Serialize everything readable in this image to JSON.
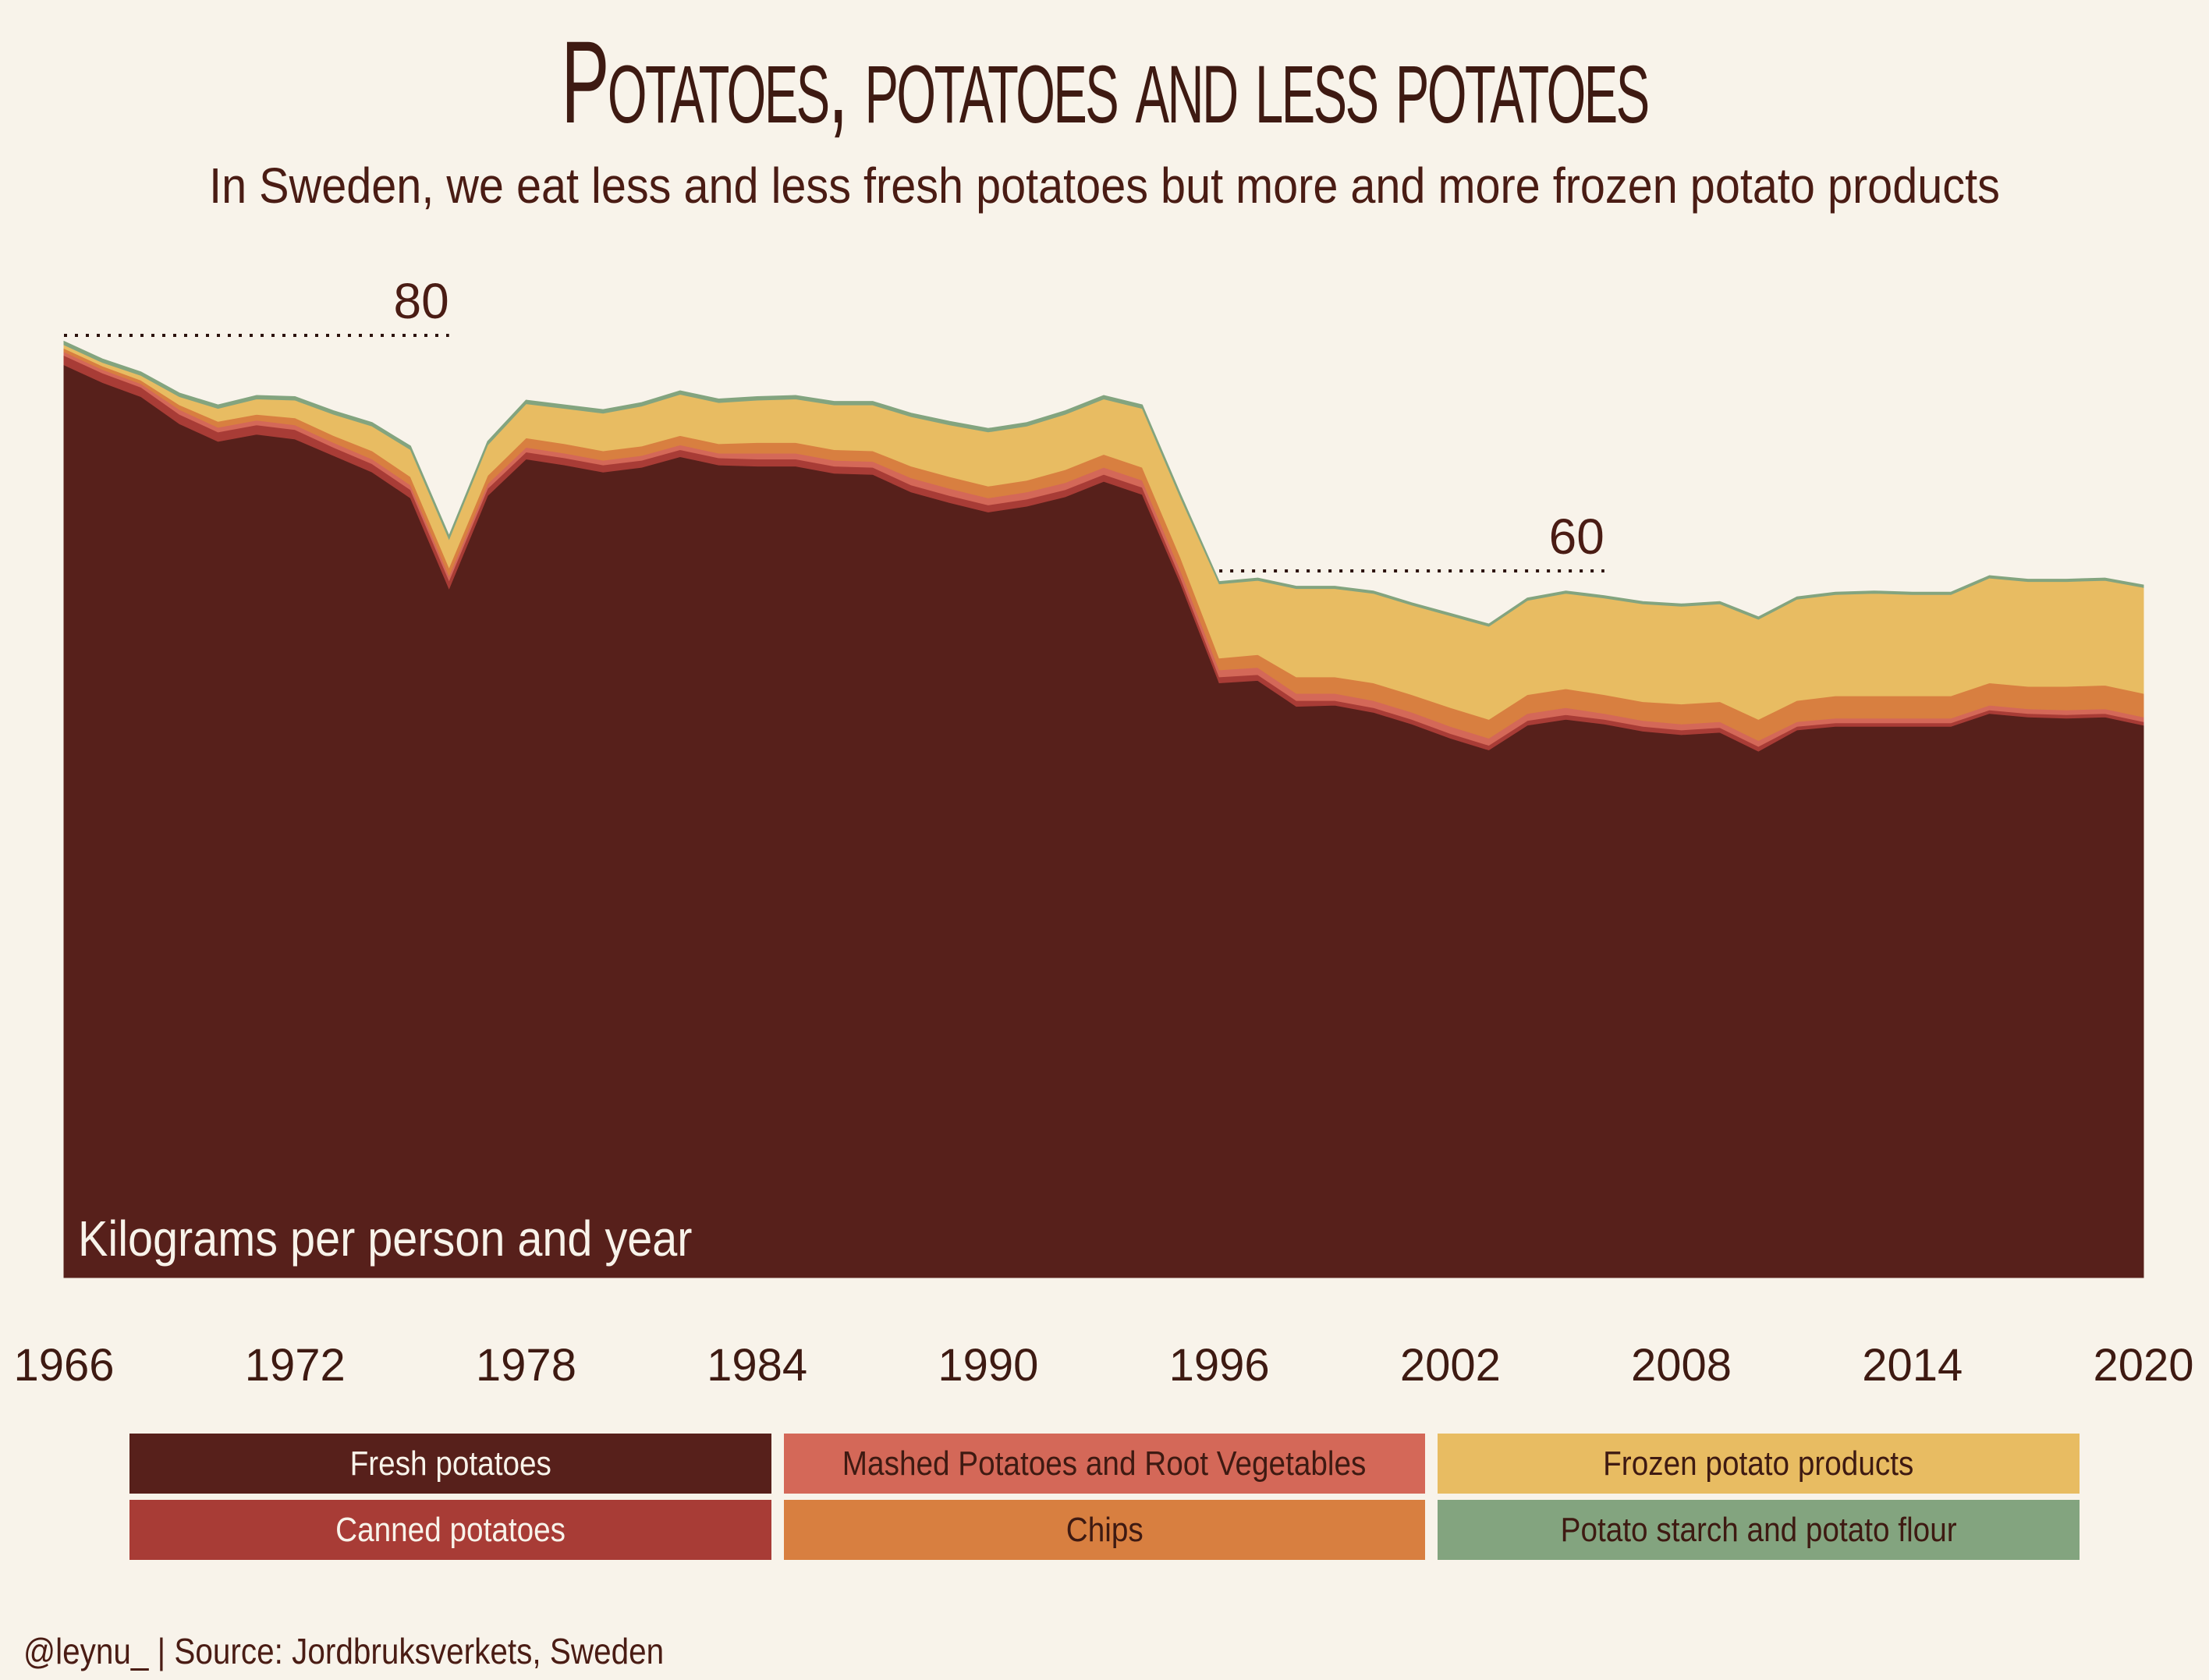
{
  "title": "Potatoes, potatoes and less potatoes",
  "subtitle": "In Sweden, we eat less and less fresh potatoes but more and more frozen potato products",
  "credit": "@leynu_ | Source: Jordbruksverkets, Sweden",
  "colors": {
    "background": "#f8f3ea",
    "text": "#4a1c14"
  },
  "chart_data": {
    "type": "area",
    "stacked": true,
    "ylabel": "Kilograms per person and year",
    "xlim": [
      1966,
      2020
    ],
    "ylim": [
      0,
      100
    ],
    "x_ticks": [
      1966,
      1972,
      1978,
      1984,
      1990,
      1996,
      2002,
      2008,
      2014,
      2020
    ],
    "annotations": [
      {
        "label": "80",
        "value": 80,
        "x_start": 1966,
        "x_end": 1976
      },
      {
        "label": "60",
        "value": 60,
        "x_start": 1996,
        "x_end": 2006
      }
    ],
    "x": [
      1966,
      1967,
      1968,
      1969,
      1970,
      1971,
      1972,
      1973,
      1974,
      1975,
      1976,
      1977,
      1978,
      1979,
      1980,
      1981,
      1982,
      1983,
      1984,
      1985,
      1986,
      1987,
      1988,
      1989,
      1990,
      1991,
      1992,
      1993,
      1994,
      1995,
      1996,
      1997,
      1998,
      1999,
      2000,
      2001,
      2002,
      2003,
      2004,
      2005,
      2006,
      2007,
      2008,
      2009,
      2010,
      2011,
      2012,
      2013,
      2014,
      2015,
      2016,
      2017,
      2018,
      2019,
      2020
    ],
    "series": [
      {
        "name": "Fresh potatoes",
        "color": "#57201b",
        "values": [
          77.5,
          76.0,
          74.8,
          72.5,
          71.0,
          71.6,
          71.2,
          69.8,
          68.4,
          66.2,
          58.5,
          66.4,
          69.5,
          69.0,
          68.4,
          68.8,
          69.7,
          69.0,
          68.9,
          68.9,
          68.3,
          68.2,
          66.7,
          65.8,
          65.0,
          65.5,
          66.3,
          67.6,
          66.5,
          58.9,
          50.5,
          50.7,
          48.5,
          48.6,
          48.0,
          47.0,
          45.8,
          44.8,
          46.9,
          47.4,
          47.0,
          46.4,
          46.1,
          46.3,
          44.7,
          46.5,
          46.8,
          46.8,
          46.8,
          46.8,
          47.9,
          47.6,
          47.5,
          47.6,
          46.9
        ]
      },
      {
        "name": "Canned potatoes",
        "color": "#a83c36",
        "values": [
          0.8,
          0.8,
          0.8,
          0.8,
          0.8,
          0.8,
          0.8,
          0.7,
          0.7,
          0.7,
          0.7,
          0.6,
          0.6,
          0.6,
          0.6,
          0.6,
          0.6,
          0.6,
          0.6,
          0.6,
          0.6,
          0.6,
          0.6,
          0.6,
          0.6,
          0.6,
          0.6,
          0.6,
          0.6,
          0.5,
          0.5,
          0.5,
          0.5,
          0.4,
          0.4,
          0.4,
          0.4,
          0.4,
          0.4,
          0.4,
          0.4,
          0.4,
          0.4,
          0.4,
          0.4,
          0.3,
          0.3,
          0.3,
          0.3,
          0.3,
          0.3,
          0.3,
          0.3,
          0.3,
          0.3
        ]
      },
      {
        "name": "Mashed Potatoes and Root Vegetables",
        "color": "#d46858",
        "values": [
          0.3,
          0.3,
          0.3,
          0.4,
          0.4,
          0.4,
          0.4,
          0.4,
          0.4,
          0.4,
          0.4,
          0.4,
          0.4,
          0.4,
          0.4,
          0.4,
          0.4,
          0.4,
          0.5,
          0.5,
          0.5,
          0.5,
          0.6,
          0.6,
          0.6,
          0.6,
          0.6,
          0.6,
          0.6,
          0.6,
          0.6,
          0.6,
          0.6,
          0.6,
          0.6,
          0.6,
          0.6,
          0.6,
          0.6,
          0.6,
          0.5,
          0.5,
          0.5,
          0.5,
          0.5,
          0.4,
          0.4,
          0.4,
          0.4,
          0.4,
          0.4,
          0.4,
          0.4,
          0.4,
          0.4
        ]
      },
      {
        "name": "Chips",
        "color": "#d87f40",
        "values": [
          0.3,
          0.3,
          0.3,
          0.4,
          0.5,
          0.5,
          0.6,
          0.6,
          0.7,
          0.7,
          0.7,
          0.7,
          0.8,
          0.8,
          0.8,
          0.8,
          0.8,
          0.8,
          0.9,
          0.9,
          0.9,
          0.9,
          1.0,
          1.0,
          1.0,
          1.0,
          1.1,
          1.1,
          1.1,
          1.1,
          1.0,
          1.1,
          1.4,
          1.4,
          1.5,
          1.5,
          1.6,
          1.6,
          1.6,
          1.6,
          1.6,
          1.6,
          1.7,
          1.7,
          1.8,
          1.8,
          1.9,
          1.9,
          1.9,
          1.9,
          1.9,
          1.9,
          2.0,
          2.0,
          2.0
        ]
      },
      {
        "name": "Frozen potato products",
        "color": "#e8bc62",
        "values": [
          0.3,
          0.3,
          0.4,
          0.7,
          1.1,
          1.3,
          1.5,
          1.8,
          2.1,
          2.3,
          2.4,
          2.6,
          2.9,
          3.0,
          3.2,
          3.4,
          3.5,
          3.5,
          3.6,
          3.7,
          3.8,
          3.9,
          4.2,
          4.4,
          4.6,
          4.6,
          4.7,
          4.7,
          5.0,
          5.1,
          6.3,
          6.3,
          7.5,
          7.5,
          7.6,
          7.6,
          7.8,
          7.9,
          8.0,
          8.1,
          8.2,
          8.3,
          8.3,
          8.3,
          8.5,
          8.6,
          8.6,
          8.7,
          8.6,
          8.6,
          8.9,
          8.9,
          8.9,
          8.9,
          9.0
        ]
      },
      {
        "name": "Potato starch and potato flour",
        "color": "#83a47f",
        "values": [
          0.3,
          0.3,
          0.3,
          0.3,
          0.3,
          0.3,
          0.3,
          0.3,
          0.3,
          0.3,
          0.3,
          0.3,
          0.3,
          0.3,
          0.3,
          0.3,
          0.3,
          0.3,
          0.3,
          0.3,
          0.3,
          0.3,
          0.3,
          0.3,
          0.3,
          0.3,
          0.3,
          0.3,
          0.3,
          0.3,
          0.2,
          0.2,
          0.2,
          0.2,
          0.2,
          0.2,
          0.2,
          0.2,
          0.2,
          0.2,
          0.2,
          0.2,
          0.2,
          0.2,
          0.2,
          0.2,
          0.2,
          0.2,
          0.2,
          0.2,
          0.2,
          0.2,
          0.2,
          0.2,
          0.2
        ]
      }
    ]
  }
}
